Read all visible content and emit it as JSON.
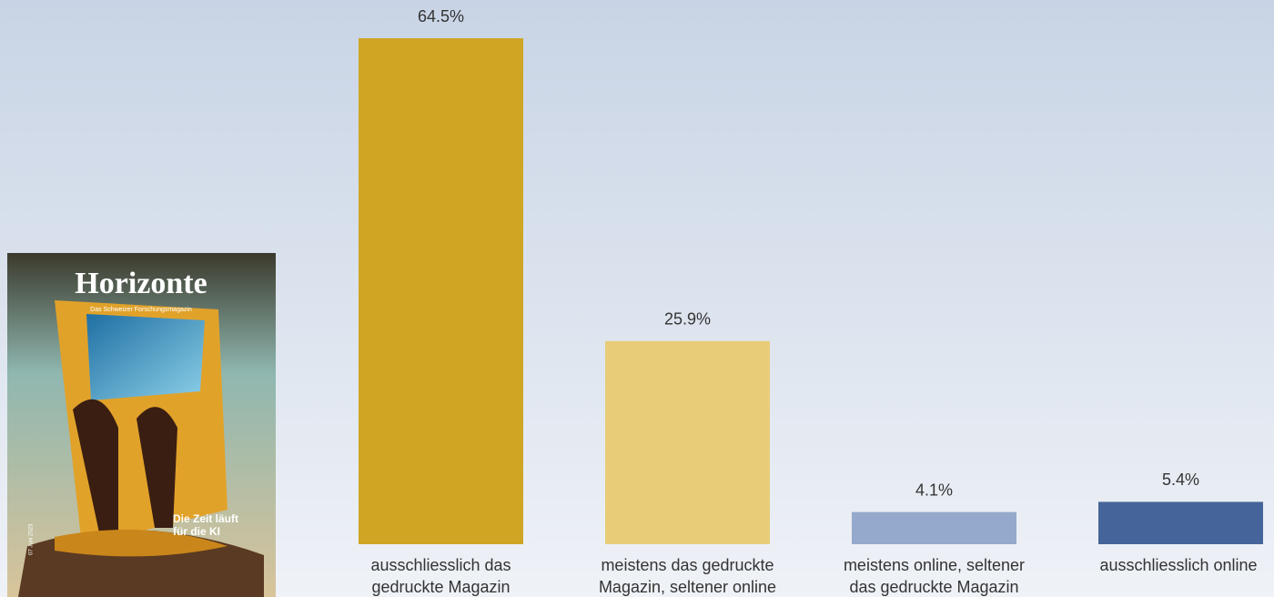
{
  "chart_data": {
    "type": "bar",
    "categories": [
      [
        "ausschliesslich das",
        "gedruckte Magazin"
      ],
      [
        "meistens das gedruckte",
        "Magazin, seltener online"
      ],
      [
        "meistens online, seltener",
        "das gedruckte Magazin"
      ],
      [
        "ausschliesslich online"
      ]
    ],
    "values": [
      64.5,
      25.9,
      4.1,
      5.4
    ],
    "value_labels": [
      "64.5%",
      "25.9%",
      "4.1%",
      "5.4%"
    ],
    "colors": [
      "#cfa624",
      "#e8cc78",
      "#94a9cb",
      "#45659a"
    ]
  },
  "cover": {
    "title": "Horizonte",
    "subtitle": "Das Schweizer Forschungsmagazin",
    "headline": [
      "Die Zeit läuft",
      "für die KI"
    ],
    "issue": "07 Juni 2023"
  }
}
